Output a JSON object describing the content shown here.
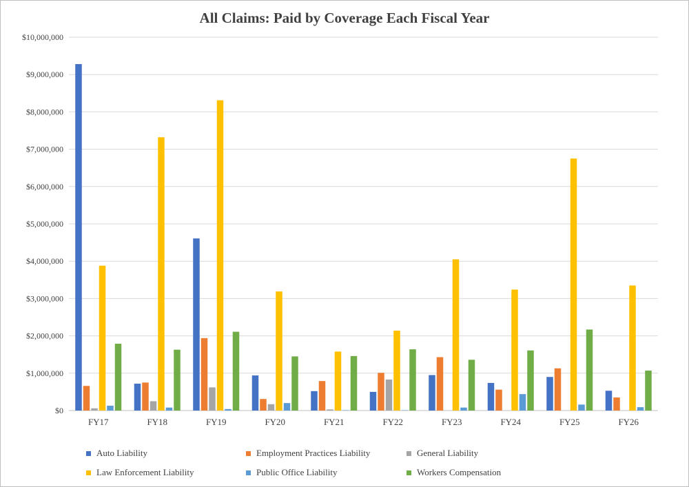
{
  "chart_data": {
    "type": "bar",
    "title": "All Claims: Paid by Coverage Each Fiscal Year",
    "xlabel": "",
    "ylabel": "",
    "ylim": [
      0,
      10000000
    ],
    "yticks": [
      "$0",
      "$1,000,000",
      "$2,000,000",
      "$3,000,000",
      "$4,000,000",
      "$5,000,000",
      "$6,000,000",
      "$7,000,000",
      "$8,000,000",
      "$9,000,000",
      "$10,000,000"
    ],
    "grid": true,
    "legend_position": "bottom",
    "categories": [
      "FY17",
      "FY18",
      "FY19",
      "FY20",
      "FY21",
      "FY22",
      "FY23",
      "FY24",
      "FY25",
      "FY26"
    ],
    "series": [
      {
        "name": "Auto Liability",
        "color": "#4472c4",
        "values": [
          9280000,
          720000,
          4610000,
          940000,
          520000,
          500000,
          950000,
          740000,
          900000,
          530000
        ]
      },
      {
        "name": "Employment Practices Liability",
        "color": "#ed7d31",
        "values": [
          660000,
          750000,
          1940000,
          310000,
          790000,
          1010000,
          1430000,
          560000,
          1130000,
          350000
        ]
      },
      {
        "name": "General Liability",
        "color": "#a5a5a5",
        "values": [
          60000,
          250000,
          620000,
          170000,
          30000,
          830000,
          0,
          0,
          0,
          0
        ]
      },
      {
        "name": "Law Enforcement Liability",
        "color": "#ffc000",
        "values": [
          3880000,
          7320000,
          8310000,
          3190000,
          1580000,
          2140000,
          4050000,
          3240000,
          6750000,
          3350000
        ]
      },
      {
        "name": "Public Office Liability",
        "color": "#5b9bd5",
        "values": [
          130000,
          80000,
          40000,
          200000,
          10000,
          10000,
          80000,
          440000,
          160000,
          90000
        ]
      },
      {
        "name": "Workers Compensation",
        "color": "#70ad47",
        "values": [
          1790000,
          1630000,
          2110000,
          1450000,
          1460000,
          1640000,
          1360000,
          1610000,
          2170000,
          1070000
        ]
      }
    ]
  }
}
